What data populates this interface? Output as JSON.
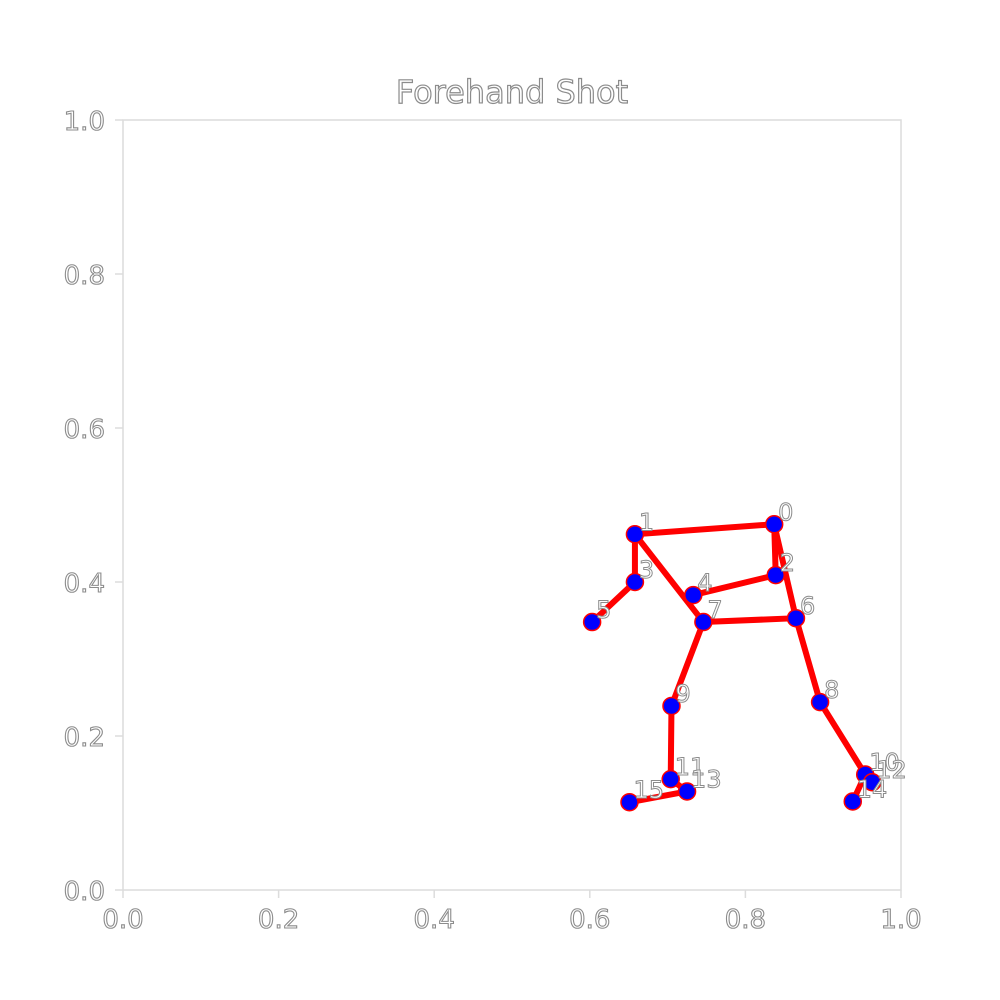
{
  "chart_data": {
    "type": "scatter",
    "title": "Forehand Shot",
    "xlabel": "",
    "ylabel": "",
    "xlim": [
      0.0,
      1.0
    ],
    "ylim": [
      0.0,
      1.0
    ],
    "xticks": [
      "0.0",
      "0.2",
      "0.4",
      "0.6",
      "0.8",
      "1.0"
    ],
    "yticks": [
      "0.0",
      "0.2",
      "0.4",
      "0.6",
      "0.8",
      "1.0"
    ],
    "grid": false,
    "keypoints": [
      {
        "id": "0",
        "x": 0.837,
        "y": 0.475
      },
      {
        "id": "1",
        "x": 0.658,
        "y": 0.462
      },
      {
        "id": "2",
        "x": 0.839,
        "y": 0.409
      },
      {
        "id": "3",
        "x": 0.658,
        "y": 0.4
      },
      {
        "id": "4",
        "x": 0.733,
        "y": 0.383
      },
      {
        "id": "5",
        "x": 0.603,
        "y": 0.348
      },
      {
        "id": "6",
        "x": 0.865,
        "y": 0.353
      },
      {
        "id": "7",
        "x": 0.746,
        "y": 0.348
      },
      {
        "id": "8",
        "x": 0.896,
        "y": 0.244
      },
      {
        "id": "9",
        "x": 0.705,
        "y": 0.239
      },
      {
        "id": "10",
        "x": 0.954,
        "y": 0.15
      },
      {
        "id": "11",
        "x": 0.704,
        "y": 0.144
      },
      {
        "id": "12",
        "x": 0.963,
        "y": 0.14
      },
      {
        "id": "13",
        "x": 0.725,
        "y": 0.128
      },
      {
        "id": "14",
        "x": 0.938,
        "y": 0.115
      },
      {
        "id": "15",
        "x": 0.651,
        "y": 0.114
      }
    ],
    "edges": [
      [
        0,
        1
      ],
      [
        0,
        2
      ],
      [
        1,
        3
      ],
      [
        3,
        5
      ],
      [
        1,
        7
      ],
      [
        2,
        4
      ],
      [
        0,
        6
      ],
      [
        6,
        7
      ],
      [
        6,
        8
      ],
      [
        8,
        10
      ],
      [
        7,
        9
      ],
      [
        9,
        11
      ],
      [
        11,
        13
      ],
      [
        13,
        15
      ],
      [
        10,
        14
      ]
    ],
    "colors": {
      "edge": "#ff0000",
      "marker_fill": "#0000ff",
      "marker_edge": "#ff0000",
      "axes": "#d9d9d9",
      "text": "#8c8c8c"
    }
  }
}
